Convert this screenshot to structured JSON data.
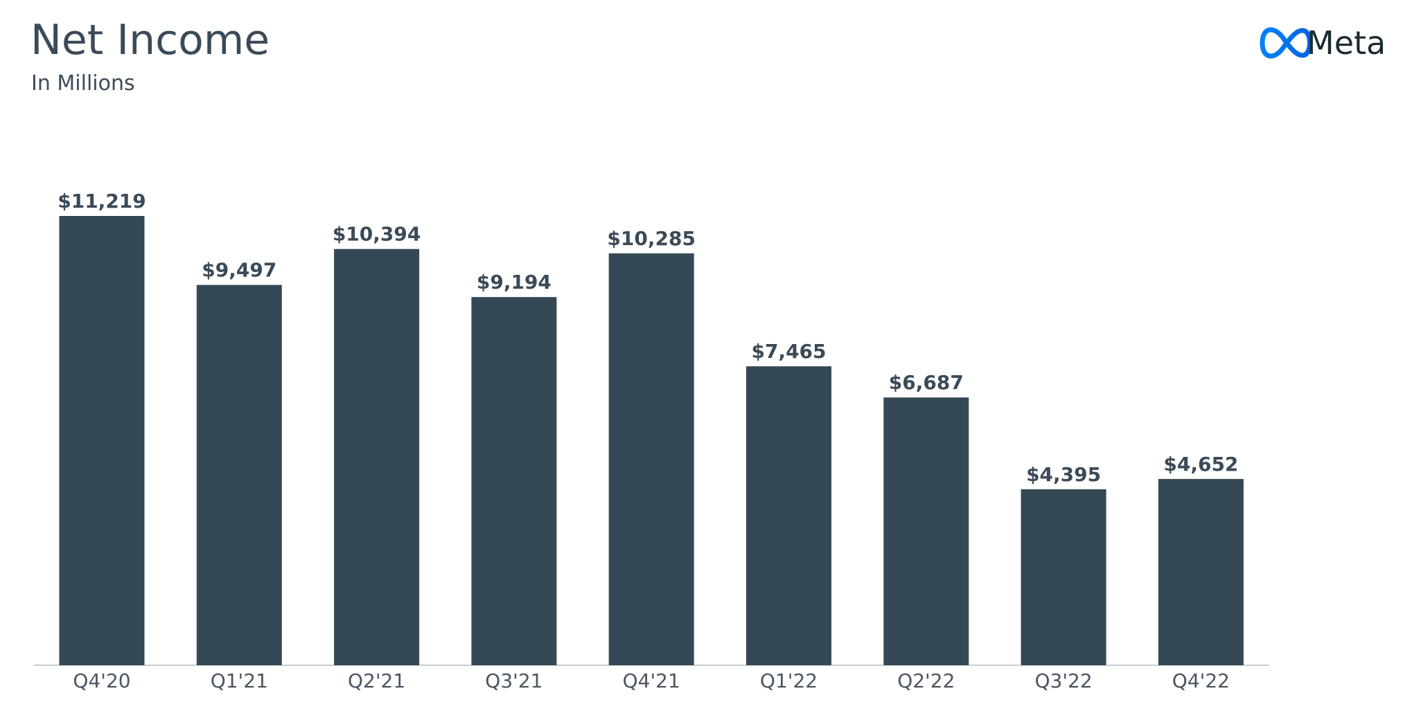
{
  "chart_data": {
    "type": "bar",
    "title": "Net Income",
    "subtitle": "In Millions",
    "logo": "Meta",
    "categories": [
      "Q4'20",
      "Q1'21",
      "Q2'21",
      "Q3'21",
      "Q4'21",
      "Q1'22",
      "Q2'22",
      "Q3'22",
      "Q4'22"
    ],
    "values": [
      11219,
      9497,
      10394,
      9194,
      10285,
      7465,
      6687,
      4395,
      4652
    ],
    "value_labels": [
      "$11,219",
      "$9,497",
      "$10,394",
      "$9,194",
      "$10,285",
      "$7,465",
      "$6,687",
      "$4,395",
      "$4,652"
    ],
    "color": "#354855"
  }
}
